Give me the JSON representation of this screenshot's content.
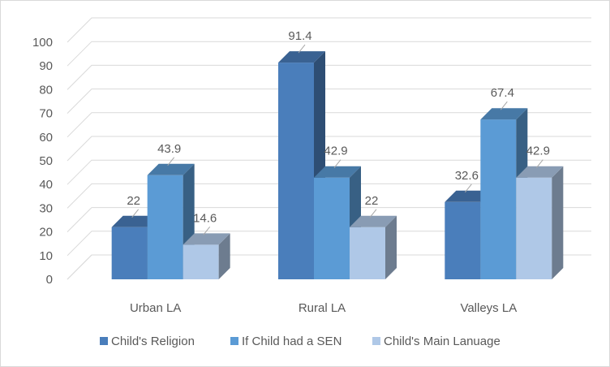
{
  "chart_data": {
    "type": "bar",
    "style": "3d-clustered-column",
    "categories": [
      "Urban LA",
      "Rural LA",
      "Valleys LA"
    ],
    "series": [
      {
        "name": "Child's Religion",
        "values": [
          22,
          91.4,
          32.6
        ],
        "color": "#4a7ebb"
      },
      {
        "name": "If Child had a SEN",
        "values": [
          43.9,
          42.9,
          67.4
        ],
        "color": "#5b9bd5"
      },
      {
        "name": "Child's Main Lanuage",
        "values": [
          14.6,
          22,
          42.9
        ],
        "color": "#afc8e7"
      }
    ],
    "data_labels": [
      [
        "22",
        "91.4",
        "32.6"
      ],
      [
        "43.9",
        "42.9",
        "67.4"
      ],
      [
        "14.6",
        "22",
        "42.9"
      ]
    ],
    "y_ticks": [
      "0",
      "10",
      "20",
      "30",
      "40",
      "50",
      "60",
      "70",
      "80",
      "90",
      "100"
    ],
    "ylim": [
      0,
      100
    ],
    "grid": true,
    "legend_position": "bottom"
  }
}
